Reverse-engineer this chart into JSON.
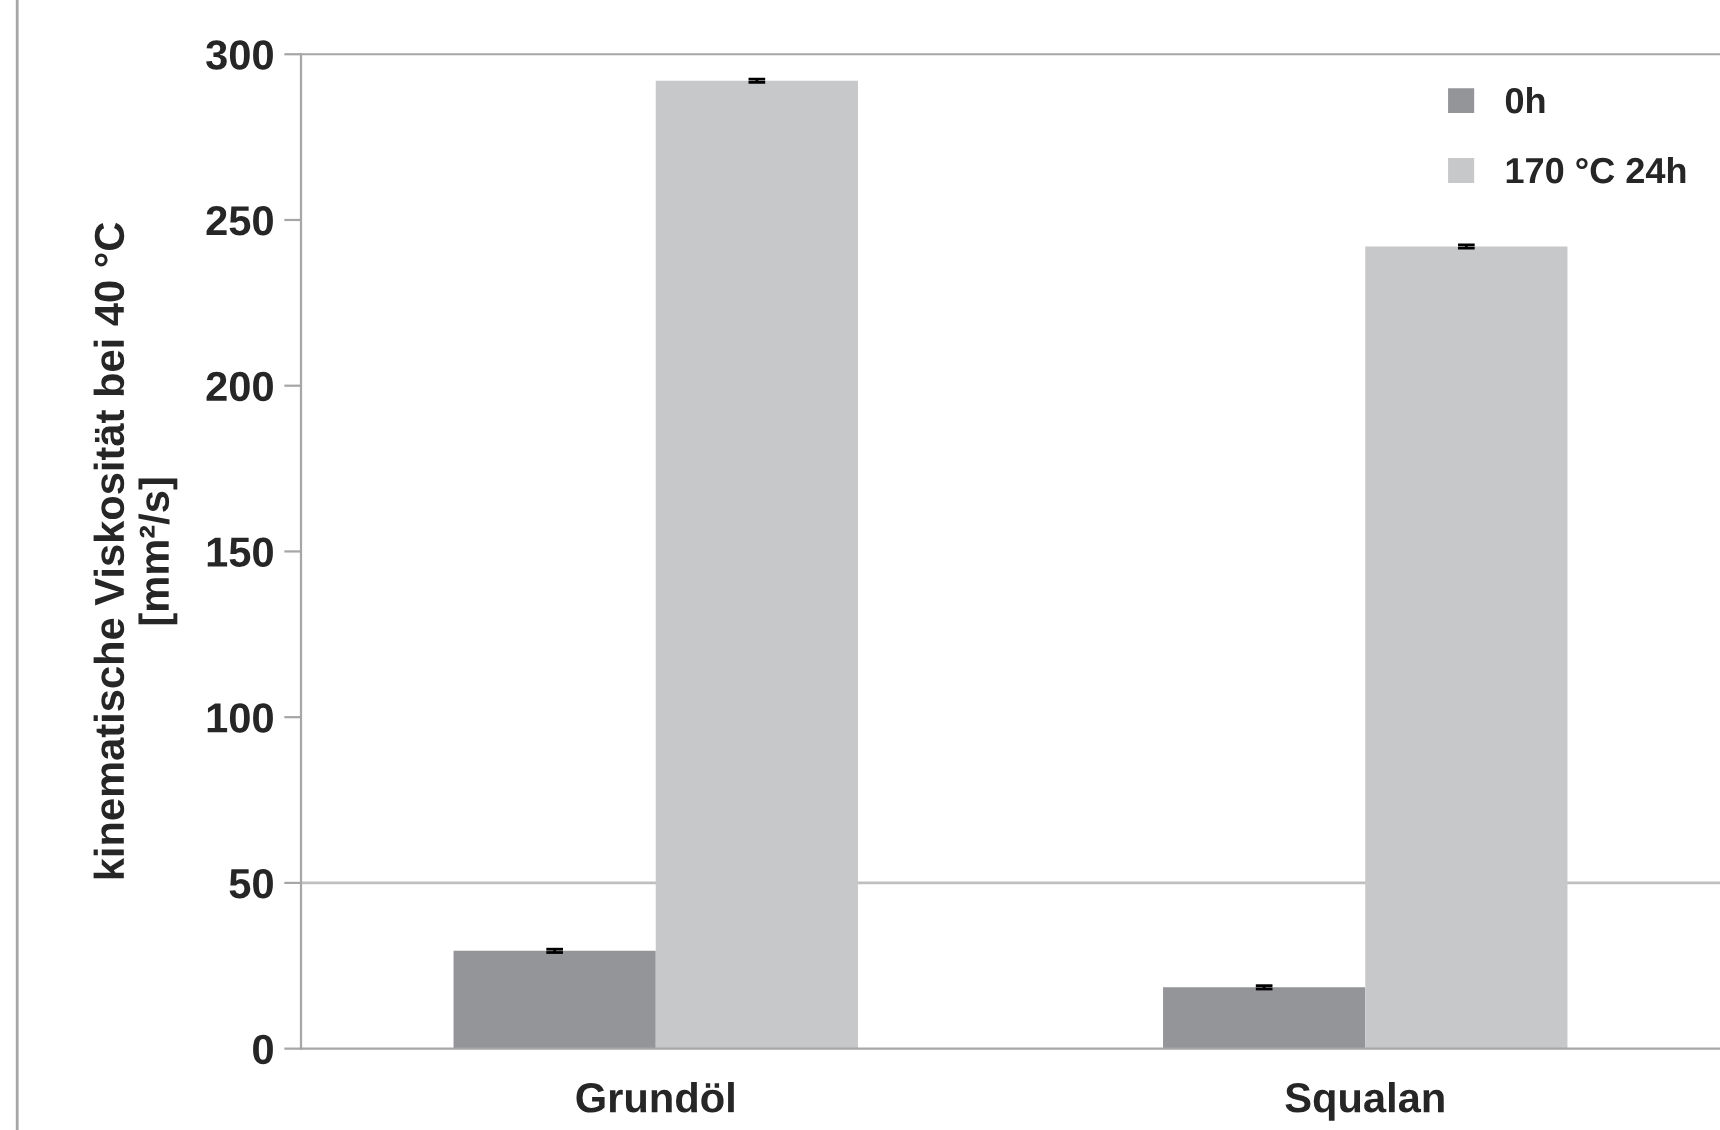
{
  "chart_data": {
    "type": "bar",
    "ylabel": "kinematische Viskosität bei 40 °C\n[mm²/s]",
    "categories": [
      "Grundöl",
      "Squalan"
    ],
    "series": [
      {
        "name": "0h",
        "color": "#939598",
        "values": [
          29.5,
          18.5
        ],
        "errors": [
          0.5,
          0.5
        ]
      },
      {
        "name": "170 °C 24h",
        "color": "#c7c8ca",
        "values": [
          292,
          242
        ],
        "errors": [
          0.5,
          0.5
        ]
      }
    ],
    "ylim": [
      0,
      300
    ],
    "yticks": [
      0,
      50,
      100,
      150,
      200,
      250,
      300
    ],
    "ref_lines": [
      {
        "axis": "y",
        "value": 50,
        "color": "#bfbfbf"
      }
    ],
    "grid": false,
    "legend": "top right"
  }
}
